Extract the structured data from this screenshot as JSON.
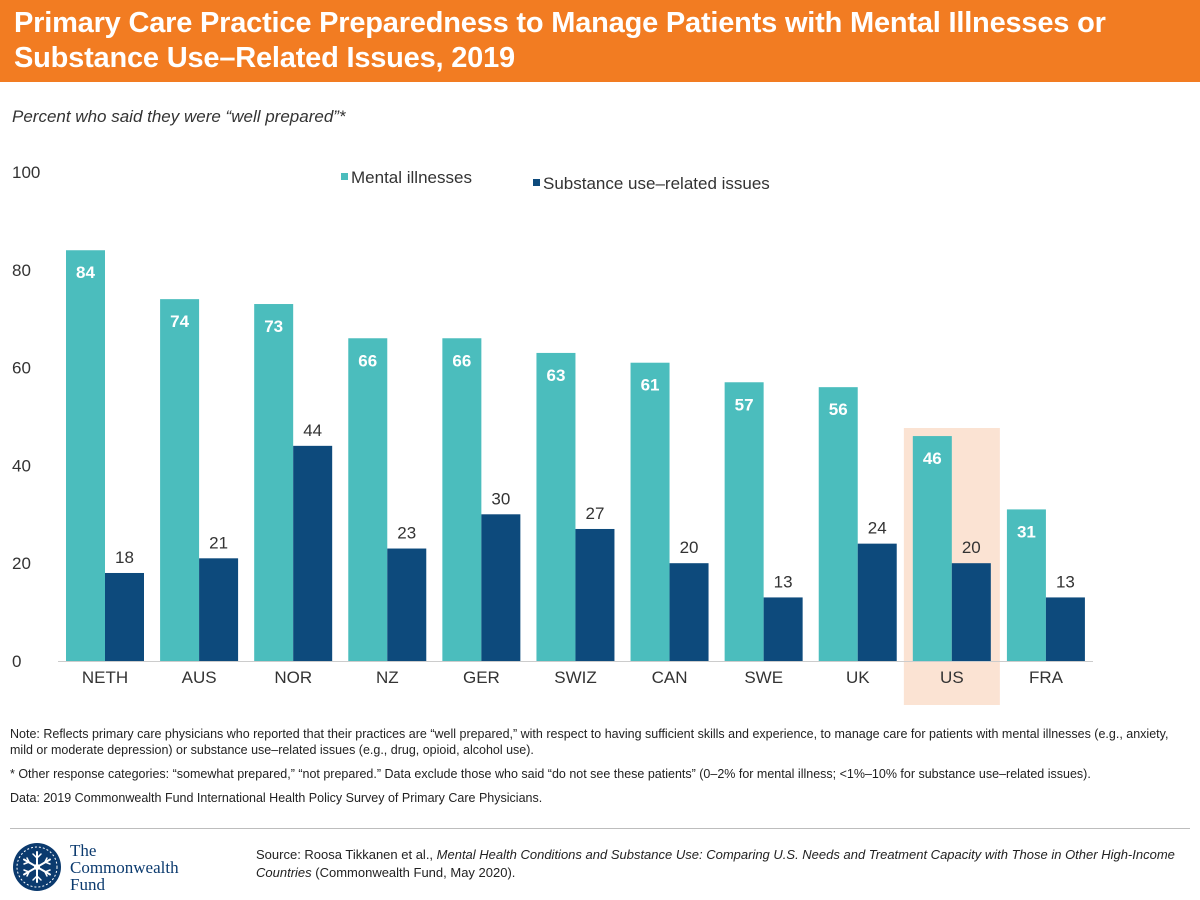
{
  "header": {
    "title": "Primary Care Practice Preparedness to Manage Patients with Mental Illnesses or Substance Use–Related Issues, 2019"
  },
  "subtitle": "Percent who said they were “well prepared”*",
  "colors": {
    "title_bar": "#f27c22",
    "mental": "#4bbdbd",
    "substance": "#0d4a7c",
    "highlight": "#fbe3d3"
  },
  "chart_data": {
    "type": "bar",
    "categories": [
      "NETH",
      "AUS",
      "NOR",
      "NZ",
      "GER",
      "SWIZ",
      "CAN",
      "SWE",
      "UK",
      "US",
      "FRA"
    ],
    "series": [
      {
        "name": "Mental illnesses",
        "values": [
          84,
          74,
          73,
          66,
          66,
          63,
          61,
          57,
          56,
          46,
          31
        ]
      },
      {
        "name": "Substance use–related issues",
        "values": [
          18,
          21,
          44,
          23,
          30,
          27,
          20,
          13,
          24,
          20,
          13
        ]
      }
    ],
    "y_ticks": [
      0,
      20,
      40,
      60,
      80,
      100
    ],
    "ylim": [
      0,
      100
    ],
    "highlight_category": "US",
    "legend_position": "top-center",
    "grid": false
  },
  "notes": [
    "Note: Reflects primary care physicians who reported that their practices are “well prepared,” with respect to having sufficient skills and experience, to manage care for patients with mental illnesses (e.g., anxiety, mild or moderate depression) or substance use–related issues (e.g., drug, opioid, alcohol use).",
    "* Other response categories: “somewhat prepared,” “not prepared.” Data exclude those who said “do not see these patients” (0–2% for mental illness; <1%–10% for substance use–related issues).",
    "Data: 2019 Commonwealth Fund International Health Policy Survey of Primary Care Physicians."
  ],
  "logo": {
    "line1": "The",
    "line2": "Commonwealth",
    "line3": "Fund",
    "icon": "snowflake-seal-icon"
  },
  "source": {
    "prefix": "Source: Roosa Tikkanen et al., ",
    "title": "Mental Health Conditions and Substance Use: Comparing U.S. Needs and Treatment Capacity with Those in Other High-Income Countries",
    "suffix": " (Commonwealth Fund, May 2020)."
  }
}
